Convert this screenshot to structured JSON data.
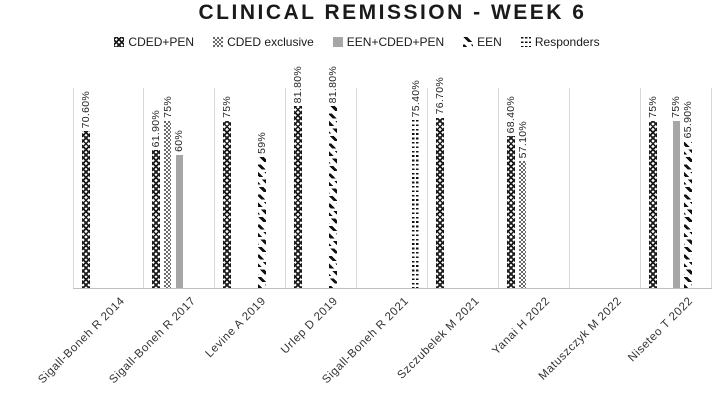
{
  "title": "CLINICAL REMISSION - WEEK 6",
  "legend": {
    "position": "top",
    "items": [
      "CDED+PEN",
      "CDED exclusive",
      "EEN+CDED+PEN",
      "EEN",
      "Responders"
    ]
  },
  "chart_data": {
    "type": "bar",
    "title": "CLINICAL REMISSION - WEEK 6",
    "categories": [
      "Sigall-Boneh R 2014",
      "Sigall-Boneh R 2017",
      "Levine A 2019",
      "Urlep D 2019",
      "Sigall-Boneh R 2021",
      "Szczubelek M 2021",
      "Yanai H 2022",
      "Matuszczyk M 2022",
      "Niseteo T 2022"
    ],
    "series": [
      {
        "name": "CDED+PEN",
        "pattern": "crosshatch",
        "values": [
          70.6,
          61.9,
          75,
          81.8,
          null,
          76.7,
          68.4,
          null,
          75
        ],
        "labels": [
          "70.60%",
          "61.90%",
          "75%",
          "81.80%",
          "",
          "76.70%",
          "68.40%",
          "",
          "75%"
        ]
      },
      {
        "name": "CDED exclusive",
        "pattern": "dotted",
        "values": [
          null,
          75,
          null,
          null,
          null,
          null,
          57.1,
          null,
          null
        ],
        "labels": [
          "",
          "75%",
          "",
          "",
          "",
          "",
          "57.10%",
          "",
          ""
        ]
      },
      {
        "name": "EEN+CDED+PEN",
        "pattern": "gray",
        "values": [
          null,
          60,
          null,
          null,
          null,
          null,
          null,
          null,
          75
        ],
        "labels": [
          "",
          "60%",
          "",
          "",
          "",
          "",
          "",
          "",
          "75%"
        ]
      },
      {
        "name": "EEN",
        "pattern": "diagdash",
        "values": [
          null,
          null,
          59,
          81.8,
          null,
          null,
          null,
          null,
          65.9
        ],
        "labels": [
          "",
          "",
          "59%",
          "81.80%",
          "",
          "",
          "",
          "",
          "65.90%"
        ]
      },
      {
        "name": "Responders",
        "pattern": "hdash",
        "values": [
          null,
          null,
          null,
          null,
          75.4,
          null,
          null,
          null,
          null
        ],
        "labels": [
          "",
          "",
          "",
          "",
          "75.40%",
          "",
          "",
          "",
          ""
        ]
      }
    ],
    "xlabel": "",
    "ylabel": "",
    "ylim": [
      0,
      90
    ],
    "y_axis_labels_visible": false,
    "grid": "vertical category boundary gridlines",
    "data_label_rotation": -90,
    "category_label_rotation": -45
  },
  "colors": {
    "background": "#ffffff",
    "pattern_dark": "#1a1a1a",
    "solid_gray_bar": "#a6a6a6",
    "gridline": "#d9d9d9",
    "axis_line": "#bfbfbf",
    "text": "#262626"
  }
}
